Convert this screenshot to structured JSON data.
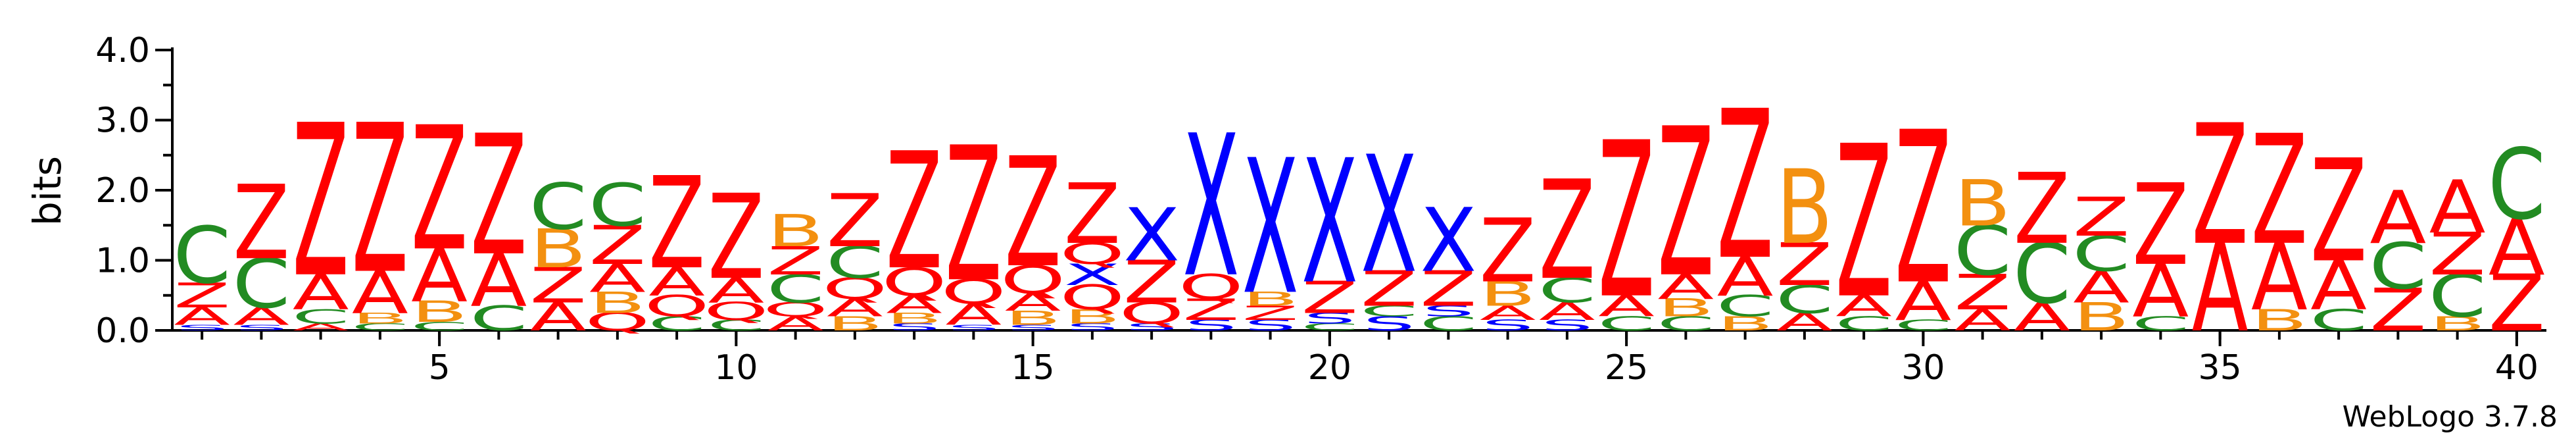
{
  "chart_data": {
    "type": "sequence-logo",
    "ylabel": "bits",
    "ylim": [
      0,
      4.0
    ],
    "yticks": [
      "0.0",
      "1.0",
      "2.0",
      "3.0",
      "4.0"
    ],
    "xticks": [
      "5",
      "10",
      "15",
      "20",
      "25",
      "30",
      "35",
      "40"
    ],
    "xtick_positions": [
      5,
      10,
      15,
      20,
      25,
      30,
      35,
      40
    ],
    "xlim": [
      0.5,
      40.5
    ],
    "colors": {
      "Z": "#ff0000",
      "A": "#ff0000",
      "C": "#228b22",
      "B": "#f39010",
      "Q": "#ff0000",
      "X": "#0000ff",
      "S": "#0000ff"
    },
    "positions": [
      {
        "pos": 1,
        "stack": [
          [
            "S",
            0.08
          ],
          [
            "A",
            0.25
          ],
          [
            "Z",
            0.35
          ],
          [
            "C",
            0.8
          ]
        ]
      },
      {
        "pos": 2,
        "stack": [
          [
            "S",
            0.08
          ],
          [
            "A",
            0.25
          ],
          [
            "C",
            0.7
          ],
          [
            "Z",
            1.05
          ]
        ]
      },
      {
        "pos": 3,
        "stack": [
          [
            "A",
            0.1
          ],
          [
            "C",
            0.2
          ],
          [
            "A",
            0.5
          ],
          [
            "Z",
            2.15
          ]
        ]
      },
      {
        "pos": 4,
        "stack": [
          [
            "C",
            0.1
          ],
          [
            "B",
            0.15
          ],
          [
            "A",
            0.6
          ],
          [
            "Z",
            2.1
          ]
        ]
      },
      {
        "pos": 5,
        "stack": [
          [
            "C",
            0.12
          ],
          [
            "B",
            0.3
          ],
          [
            "A",
            0.75
          ],
          [
            "Z",
            1.75
          ]
        ]
      },
      {
        "pos": 6,
        "stack": [
          [
            "C",
            0.35
          ],
          [
            "A",
            0.75
          ],
          [
            "Z",
            1.7
          ]
        ]
      },
      {
        "pos": 7,
        "stack": [
          [
            "A",
            0.4
          ],
          [
            "Z",
            0.5
          ],
          [
            "B",
            0.55
          ],
          [
            "C",
            0.65
          ]
        ]
      },
      {
        "pos": 8,
        "stack": [
          [
            "Q",
            0.25
          ],
          [
            "B",
            0.3
          ],
          [
            "A",
            0.4
          ],
          [
            "Z",
            0.55
          ],
          [
            "C",
            0.6
          ]
        ]
      },
      {
        "pos": 9,
        "stack": [
          [
            "C",
            0.2
          ],
          [
            "Q",
            0.3
          ],
          [
            "A",
            0.4
          ],
          [
            "Z",
            1.3
          ]
        ]
      },
      {
        "pos": 10,
        "stack": [
          [
            "C",
            0.15
          ],
          [
            "Q",
            0.25
          ],
          [
            "A",
            0.35
          ],
          [
            "Z",
            1.2
          ]
        ]
      },
      {
        "pos": 11,
        "stack": [
          [
            "A",
            0.2
          ],
          [
            "Q",
            0.2
          ],
          [
            "C",
            0.4
          ],
          [
            "Z",
            0.4
          ],
          [
            "B",
            0.45
          ]
        ]
      },
      {
        "pos": 12,
        "stack": [
          [
            "B",
            0.2
          ],
          [
            "A",
            0.25
          ],
          [
            "Q",
            0.3
          ],
          [
            "C",
            0.45
          ],
          [
            "Z",
            0.75
          ]
        ]
      },
      {
        "pos": 13,
        "stack": [
          [
            "S",
            0.1
          ],
          [
            "B",
            0.15
          ],
          [
            "A",
            0.25
          ],
          [
            "Q",
            0.4
          ],
          [
            "Z",
            1.65
          ]
        ]
      },
      {
        "pos": 14,
        "stack": [
          [
            "S",
            0.08
          ],
          [
            "A",
            0.3
          ],
          [
            "Q",
            0.35
          ],
          [
            "Z",
            1.9
          ]
        ]
      },
      {
        "pos": 15,
        "stack": [
          [
            "S",
            0.08
          ],
          [
            "B",
            0.2
          ],
          [
            "A",
            0.25
          ],
          [
            "Q",
            0.4
          ],
          [
            "Z",
            1.55
          ]
        ]
      },
      {
        "pos": 16,
        "stack": [
          [
            "S",
            0.1
          ],
          [
            "B",
            0.2
          ],
          [
            "Q",
            0.35
          ],
          [
            "X",
            0.3
          ],
          [
            "Q",
            0.3
          ],
          [
            "Z",
            0.85
          ]
        ]
      },
      {
        "pos": 17,
        "stack": [
          [
            "S",
            0.1
          ],
          [
            "Q",
            0.3
          ],
          [
            "Z",
            0.6
          ],
          [
            "X",
            0.75
          ]
        ]
      },
      {
        "pos": 18,
        "stack": [
          [
            "S",
            0.15
          ],
          [
            "Z",
            0.3
          ],
          [
            "Q",
            0.35
          ],
          [
            "X",
            2.0
          ]
        ]
      },
      {
        "pos": 19,
        "stack": [
          [
            "S",
            0.15
          ],
          [
            "Z",
            0.2
          ],
          [
            "B",
            0.2
          ],
          [
            "X",
            1.9
          ]
        ]
      },
      {
        "pos": 20,
        "stack": [
          [
            "C",
            0.1
          ],
          [
            "S",
            0.15
          ],
          [
            "Z",
            0.45
          ],
          [
            "X",
            1.75
          ]
        ]
      },
      {
        "pos": 21,
        "stack": [
          [
            "S",
            0.2
          ],
          [
            "C",
            0.15
          ],
          [
            "Z",
            0.5
          ],
          [
            "X",
            1.65
          ]
        ]
      },
      {
        "pos": 22,
        "stack": [
          [
            "C",
            0.2
          ],
          [
            "S",
            0.15
          ],
          [
            "Z",
            0.5
          ],
          [
            "X",
            0.9
          ]
        ]
      },
      {
        "pos": 23,
        "stack": [
          [
            "S",
            0.15
          ],
          [
            "A",
            0.2
          ],
          [
            "B",
            0.35
          ],
          [
            "Z",
            0.9
          ]
        ]
      },
      {
        "pos": 24,
        "stack": [
          [
            "S",
            0.15
          ],
          [
            "A",
            0.25
          ],
          [
            "C",
            0.35
          ],
          [
            "Z",
            1.4
          ]
        ]
      },
      {
        "pos": 25,
        "stack": [
          [
            "C",
            0.2
          ],
          [
            "A",
            0.3
          ],
          [
            "Z",
            2.2
          ]
        ]
      },
      {
        "pos": 26,
        "stack": [
          [
            "C",
            0.2
          ],
          [
            "B",
            0.25
          ],
          [
            "A",
            0.35
          ],
          [
            "Z",
            2.1
          ]
        ]
      },
      {
        "pos": 27,
        "stack": [
          [
            "B",
            0.2
          ],
          [
            "C",
            0.3
          ],
          [
            "A",
            0.55
          ],
          [
            "Z",
            2.1
          ]
        ]
      },
      {
        "pos": 28,
        "stack": [
          [
            "A",
            0.25
          ],
          [
            "C",
            0.4
          ],
          [
            "Z",
            0.6
          ],
          [
            "B",
            1.05
          ]
        ]
      },
      {
        "pos": 29,
        "stack": [
          [
            "C",
            0.2
          ],
          [
            "A",
            0.3
          ],
          [
            "Z",
            2.15
          ]
        ]
      },
      {
        "pos": 30,
        "stack": [
          [
            "C",
            0.15
          ],
          [
            "A",
            0.55
          ],
          [
            "Z",
            2.15
          ]
        ]
      },
      {
        "pos": 31,
        "stack": [
          [
            "A",
            0.3
          ],
          [
            "Z",
            0.5
          ],
          [
            "C",
            0.7
          ],
          [
            "B",
            0.65
          ]
        ]
      },
      {
        "pos": 32,
        "stack": [
          [
            "A",
            0.4
          ],
          [
            "C",
            0.85
          ],
          [
            "Z",
            1.0
          ]
        ]
      },
      {
        "pos": 33,
        "stack": [
          [
            "B",
            0.4
          ],
          [
            "A",
            0.45
          ],
          [
            "C",
            0.5
          ],
          [
            "Z",
            0.55
          ]
        ]
      },
      {
        "pos": 34,
        "stack": [
          [
            "C",
            0.2
          ],
          [
            "A",
            0.75
          ],
          [
            "Z",
            1.15
          ]
        ]
      },
      {
        "pos": 35,
        "stack": [
          [
            "A",
            1.25
          ],
          [
            "Z",
            1.7
          ]
        ]
      },
      {
        "pos": 36,
        "stack": [
          [
            "B",
            0.3
          ],
          [
            "A",
            0.95
          ],
          [
            "Z",
            1.55
          ]
        ]
      },
      {
        "pos": 37,
        "stack": [
          [
            "C",
            0.3
          ],
          [
            "A",
            0.7
          ],
          [
            "Z",
            1.45
          ]
        ]
      },
      {
        "pos": 38,
        "stack": [
          [
            "Z",
            0.6
          ],
          [
            "C",
            0.65
          ],
          [
            "A",
            0.75
          ]
        ]
      },
      {
        "pos": 39,
        "stack": [
          [
            "B",
            0.2
          ],
          [
            "C",
            0.6
          ],
          [
            "Z",
            0.6
          ],
          [
            "A",
            0.75
          ]
        ]
      },
      {
        "pos": 40,
        "stack": [
          [
            "Z",
            0.8
          ],
          [
            "A",
            0.8
          ],
          [
            "C",
            1.0
          ]
        ]
      }
    ]
  },
  "footer": {
    "credit": "WebLogo 3.7.8"
  }
}
